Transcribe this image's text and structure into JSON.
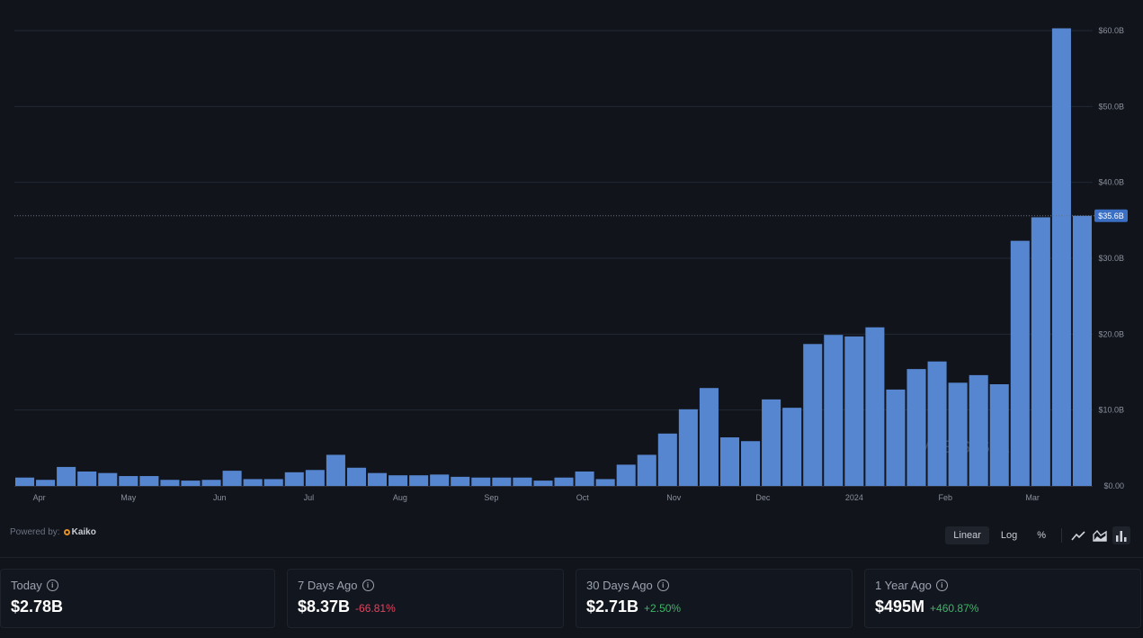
{
  "chart_data": {
    "type": "bar",
    "title": "",
    "xlabel": "",
    "ylabel": "",
    "ylim": [
      0,
      60
    ],
    "grid": true,
    "color": "#5686d0",
    "y_ticks": [
      {
        "value": 0,
        "label": "$0.00"
      },
      {
        "value": 10,
        "label": "$10.0B"
      },
      {
        "value": 20,
        "label": "$20.0B"
      },
      {
        "value": 30,
        "label": "$30.0B"
      },
      {
        "value": 40,
        "label": "$40.0B"
      },
      {
        "value": 50,
        "label": "$50.0B"
      },
      {
        "value": 60,
        "label": "$60.0B"
      }
    ],
    "x_ticks": [
      {
        "label": "Apr",
        "at": 1.2
      },
      {
        "label": "May",
        "at": 5.5
      },
      {
        "label": "Jun",
        "at": 9.9
      },
      {
        "label": "Jul",
        "at": 14.2
      },
      {
        "label": "Aug",
        "at": 18.6
      },
      {
        "label": "Sep",
        "at": 23.0
      },
      {
        "label": "Oct",
        "at": 27.4
      },
      {
        "label": "Nov",
        "at": 31.8
      },
      {
        "label": "Dec",
        "at": 36.1
      },
      {
        "label": "2024",
        "at": 40.5
      },
      {
        "label": "Feb",
        "at": 44.9
      },
      {
        "label": "Mar",
        "at": 49.1
      }
    ],
    "values": [
      1.1,
      0.8,
      2.5,
      1.9,
      1.7,
      1.3,
      1.3,
      0.8,
      0.7,
      0.8,
      2.0,
      0.9,
      0.9,
      1.8,
      2.1,
      4.1,
      2.4,
      1.7,
      1.4,
      1.4,
      1.5,
      1.2,
      1.1,
      1.1,
      1.1,
      0.7,
      1.1,
      1.9,
      0.9,
      2.8,
      4.1,
      6.9,
      10.1,
      12.9,
      6.4,
      5.9,
      11.4,
      10.3,
      18.7,
      19.9,
      19.7,
      20.9,
      12.7,
      15.4,
      16.4,
      13.6,
      14.6,
      13.4,
      32.3,
      35.4,
      60.3,
      35.6
    ],
    "current_value": 35.6,
    "current_label": "$35.6B",
    "watermark": "MESSARI"
  },
  "footer": {
    "powered_by": "Powered by:",
    "provider": "Kaiko"
  },
  "controls": {
    "linear": "Linear",
    "log": "Log",
    "percent": "%"
  },
  "cards": [
    {
      "label": "Today",
      "value": "$2.78B",
      "change": ""
    },
    {
      "label": "7 Days Ago",
      "value": "$8.37B",
      "change": "-66.81%"
    },
    {
      "label": "30 Days Ago",
      "value": "$2.71B",
      "change": "+2.50%"
    },
    {
      "label": "1 Year Ago",
      "value": "$495M",
      "change": "+460.87%"
    }
  ]
}
